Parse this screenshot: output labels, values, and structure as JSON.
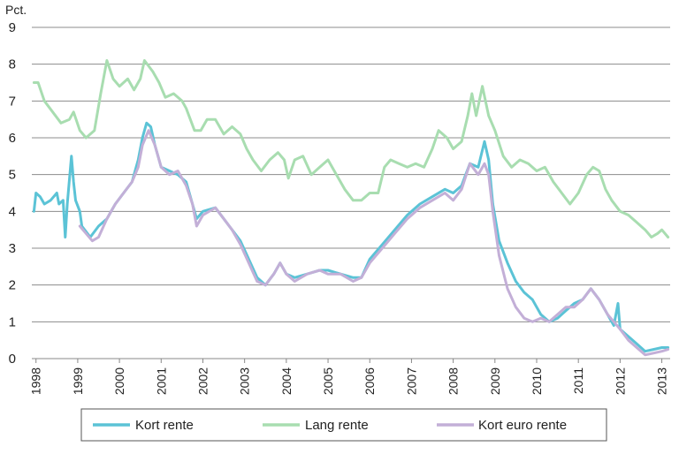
{
  "chart_data": {
    "type": "line",
    "ylabel_unit": "Pct.",
    "ylim": [
      0,
      9
    ],
    "yticks": [
      "0",
      "1",
      "2",
      "3",
      "4",
      "5",
      "6",
      "7",
      "8",
      "9"
    ],
    "xlim": [
      1997.9,
      2013.2
    ],
    "xticks": [
      "1998",
      "1999",
      "2000",
      "2001",
      "2002",
      "2003",
      "2004",
      "2005",
      "2006",
      "2007",
      "2008",
      "2009",
      "2010",
      "2011",
      "2012",
      "2013"
    ],
    "grid": true,
    "legend_position": "bottom",
    "series": [
      {
        "name": "Kort rente",
        "color": "#5bc3d6",
        "points": [
          [
            1997.95,
            4.0
          ],
          [
            1998.0,
            4.5
          ],
          [
            1998.1,
            4.4
          ],
          [
            1998.2,
            4.2
          ],
          [
            1998.35,
            4.3
          ],
          [
            1998.5,
            4.5
          ],
          [
            1998.55,
            4.2
          ],
          [
            1998.65,
            4.3
          ],
          [
            1998.7,
            3.3
          ],
          [
            1998.75,
            4.2
          ],
          [
            1998.85,
            5.5
          ],
          [
            1998.9,
            4.8
          ],
          [
            1998.95,
            4.3
          ],
          [
            1999.05,
            4.0
          ],
          [
            1999.1,
            3.6
          ],
          [
            1999.3,
            3.3
          ],
          [
            1999.5,
            3.6
          ],
          [
            1999.7,
            3.8
          ],
          [
            1999.9,
            4.2
          ],
          [
            2000.1,
            4.5
          ],
          [
            2000.3,
            4.8
          ],
          [
            2000.45,
            5.4
          ],
          [
            2000.55,
            6.0
          ],
          [
            2000.65,
            6.4
          ],
          [
            2000.75,
            6.3
          ],
          [
            2000.85,
            5.8
          ],
          [
            2001.0,
            5.2
          ],
          [
            2001.2,
            5.1
          ],
          [
            2001.4,
            5.0
          ],
          [
            2001.6,
            4.8
          ],
          [
            2001.75,
            4.2
          ],
          [
            2001.85,
            3.8
          ],
          [
            2002.0,
            4.0
          ],
          [
            2002.3,
            4.1
          ],
          [
            2002.5,
            3.8
          ],
          [
            2002.7,
            3.5
          ],
          [
            2002.9,
            3.2
          ],
          [
            2003.1,
            2.7
          ],
          [
            2003.3,
            2.2
          ],
          [
            2003.5,
            2.0
          ],
          [
            2003.7,
            2.3
          ],
          [
            2003.85,
            2.6
          ],
          [
            2004.0,
            2.3
          ],
          [
            2004.2,
            2.2
          ],
          [
            2004.5,
            2.3
          ],
          [
            2004.8,
            2.4
          ],
          [
            2005.0,
            2.4
          ],
          [
            2005.3,
            2.3
          ],
          [
            2005.6,
            2.2
          ],
          [
            2005.8,
            2.2
          ],
          [
            2006.0,
            2.7
          ],
          [
            2006.3,
            3.1
          ],
          [
            2006.6,
            3.5
          ],
          [
            2006.9,
            3.9
          ],
          [
            2007.2,
            4.2
          ],
          [
            2007.5,
            4.4
          ],
          [
            2007.8,
            4.6
          ],
          [
            2008.0,
            4.5
          ],
          [
            2008.2,
            4.7
          ],
          [
            2008.4,
            5.3
          ],
          [
            2008.6,
            5.2
          ],
          [
            2008.75,
            5.9
          ],
          [
            2008.85,
            5.4
          ],
          [
            2008.95,
            4.2
          ],
          [
            2009.1,
            3.2
          ],
          [
            2009.3,
            2.6
          ],
          [
            2009.5,
            2.1
          ],
          [
            2009.7,
            1.8
          ],
          [
            2009.9,
            1.6
          ],
          [
            2010.1,
            1.2
          ],
          [
            2010.3,
            1.0
          ],
          [
            2010.5,
            1.1
          ],
          [
            2010.7,
            1.3
          ],
          [
            2010.9,
            1.5
          ],
          [
            2011.1,
            1.6
          ],
          [
            2011.3,
            1.9
          ],
          [
            2011.5,
            1.6
          ],
          [
            2011.7,
            1.2
          ],
          [
            2011.85,
            0.9
          ],
          [
            2011.95,
            1.5
          ],
          [
            2012.0,
            0.8
          ],
          [
            2012.2,
            0.6
          ],
          [
            2012.4,
            0.4
          ],
          [
            2012.6,
            0.2
          ],
          [
            2012.8,
            0.25
          ],
          [
            2013.0,
            0.3
          ],
          [
            2013.15,
            0.3
          ]
        ]
      },
      {
        "name": "Lang rente",
        "color": "#a8ddb0",
        "points": [
          [
            1997.95,
            7.5
          ],
          [
            1998.05,
            7.5
          ],
          [
            1998.2,
            7.0
          ],
          [
            1998.4,
            6.7
          ],
          [
            1998.6,
            6.4
          ],
          [
            1998.8,
            6.5
          ],
          [
            1998.9,
            6.7
          ],
          [
            1999.05,
            6.2
          ],
          [
            1999.2,
            6.0
          ],
          [
            1999.4,
            6.2
          ],
          [
            1999.55,
            7.2
          ],
          [
            1999.7,
            8.1
          ],
          [
            1999.85,
            7.6
          ],
          [
            2000.0,
            7.4
          ],
          [
            2000.2,
            7.6
          ],
          [
            2000.35,
            7.3
          ],
          [
            2000.5,
            7.6
          ],
          [
            2000.6,
            8.1
          ],
          [
            2000.8,
            7.8
          ],
          [
            2000.95,
            7.5
          ],
          [
            2001.1,
            7.1
          ],
          [
            2001.3,
            7.2
          ],
          [
            2001.5,
            7.0
          ],
          [
            2001.6,
            6.8
          ],
          [
            2001.8,
            6.2
          ],
          [
            2001.95,
            6.2
          ],
          [
            2002.1,
            6.5
          ],
          [
            2002.3,
            6.5
          ],
          [
            2002.5,
            6.1
          ],
          [
            2002.7,
            6.3
          ],
          [
            2002.9,
            6.1
          ],
          [
            2003.05,
            5.7
          ],
          [
            2003.2,
            5.4
          ],
          [
            2003.4,
            5.1
          ],
          [
            2003.6,
            5.4
          ],
          [
            2003.8,
            5.6
          ],
          [
            2003.95,
            5.4
          ],
          [
            2004.05,
            4.9
          ],
          [
            2004.2,
            5.4
          ],
          [
            2004.4,
            5.5
          ],
          [
            2004.6,
            5.0
          ],
          [
            2004.8,
            5.2
          ],
          [
            2005.0,
            5.4
          ],
          [
            2005.2,
            5.0
          ],
          [
            2005.4,
            4.6
          ],
          [
            2005.6,
            4.3
          ],
          [
            2005.8,
            4.3
          ],
          [
            2006.0,
            4.5
          ],
          [
            2006.2,
            4.5
          ],
          [
            2006.35,
            5.2
          ],
          [
            2006.5,
            5.4
          ],
          [
            2006.7,
            5.3
          ],
          [
            2006.9,
            5.2
          ],
          [
            2007.1,
            5.3
          ],
          [
            2007.3,
            5.2
          ],
          [
            2007.5,
            5.7
          ],
          [
            2007.65,
            6.2
          ],
          [
            2007.85,
            6.0
          ],
          [
            2008.0,
            5.7
          ],
          [
            2008.2,
            5.9
          ],
          [
            2008.35,
            6.6
          ],
          [
            2008.45,
            7.2
          ],
          [
            2008.55,
            6.6
          ],
          [
            2008.7,
            7.4
          ],
          [
            2008.85,
            6.6
          ],
          [
            2009.0,
            6.2
          ],
          [
            2009.2,
            5.5
          ],
          [
            2009.4,
            5.2
          ],
          [
            2009.6,
            5.4
          ],
          [
            2009.8,
            5.3
          ],
          [
            2010.0,
            5.1
          ],
          [
            2010.2,
            5.2
          ],
          [
            2010.4,
            4.8
          ],
          [
            2010.6,
            4.5
          ],
          [
            2010.8,
            4.2
          ],
          [
            2011.0,
            4.5
          ],
          [
            2011.2,
            5.0
          ],
          [
            2011.35,
            5.2
          ],
          [
            2011.5,
            5.1
          ],
          [
            2011.65,
            4.6
          ],
          [
            2011.8,
            4.3
          ],
          [
            2012.0,
            4.0
          ],
          [
            2012.2,
            3.9
          ],
          [
            2012.4,
            3.7
          ],
          [
            2012.6,
            3.5
          ],
          [
            2012.75,
            3.3
          ],
          [
            2012.9,
            3.4
          ],
          [
            2013.0,
            3.5
          ],
          [
            2013.15,
            3.3
          ]
        ]
      },
      {
        "name": "Kort euro rente",
        "color": "#c3afd7",
        "points": [
          [
            1999.05,
            3.6
          ],
          [
            1999.2,
            3.4
          ],
          [
            1999.35,
            3.2
          ],
          [
            1999.5,
            3.3
          ],
          [
            1999.7,
            3.8
          ],
          [
            1999.9,
            4.2
          ],
          [
            2000.1,
            4.5
          ],
          [
            2000.3,
            4.8
          ],
          [
            2000.45,
            5.2
          ],
          [
            2000.55,
            5.8
          ],
          [
            2000.7,
            6.2
          ],
          [
            2000.85,
            5.8
          ],
          [
            2001.0,
            5.2
          ],
          [
            2001.2,
            5.0
          ],
          [
            2001.4,
            5.1
          ],
          [
            2001.6,
            4.7
          ],
          [
            2001.75,
            4.2
          ],
          [
            2001.85,
            3.6
          ],
          [
            2002.0,
            3.9
          ],
          [
            2002.3,
            4.1
          ],
          [
            2002.5,
            3.8
          ],
          [
            2002.7,
            3.5
          ],
          [
            2002.9,
            3.1
          ],
          [
            2003.1,
            2.6
          ],
          [
            2003.3,
            2.1
          ],
          [
            2003.5,
            2.0
          ],
          [
            2003.7,
            2.3
          ],
          [
            2003.85,
            2.6
          ],
          [
            2004.0,
            2.3
          ],
          [
            2004.2,
            2.1
          ],
          [
            2004.5,
            2.3
          ],
          [
            2004.8,
            2.4
          ],
          [
            2005.0,
            2.3
          ],
          [
            2005.3,
            2.3
          ],
          [
            2005.6,
            2.1
          ],
          [
            2005.8,
            2.2
          ],
          [
            2006.0,
            2.6
          ],
          [
            2006.3,
            3.0
          ],
          [
            2006.6,
            3.4
          ],
          [
            2006.9,
            3.8
          ],
          [
            2007.2,
            4.1
          ],
          [
            2007.5,
            4.3
          ],
          [
            2007.8,
            4.5
          ],
          [
            2008.0,
            4.3
          ],
          [
            2008.2,
            4.6
          ],
          [
            2008.4,
            5.3
          ],
          [
            2008.6,
            5.0
          ],
          [
            2008.75,
            5.3
          ],
          [
            2008.85,
            5.0
          ],
          [
            2008.95,
            4.0
          ],
          [
            2009.1,
            2.8
          ],
          [
            2009.3,
            1.9
          ],
          [
            2009.5,
            1.4
          ],
          [
            2009.7,
            1.1
          ],
          [
            2009.9,
            1.0
          ],
          [
            2010.1,
            1.1
          ],
          [
            2010.3,
            1.0
          ],
          [
            2010.5,
            1.2
          ],
          [
            2010.7,
            1.4
          ],
          [
            2010.9,
            1.4
          ],
          [
            2011.1,
            1.6
          ],
          [
            2011.3,
            1.9
          ],
          [
            2011.5,
            1.6
          ],
          [
            2011.7,
            1.2
          ],
          [
            2011.85,
            1.0
          ],
          [
            2012.0,
            0.8
          ],
          [
            2012.2,
            0.5
          ],
          [
            2012.4,
            0.3
          ],
          [
            2012.6,
            0.1
          ],
          [
            2012.8,
            0.15
          ],
          [
            2013.0,
            0.2
          ],
          [
            2013.15,
            0.25
          ]
        ]
      }
    ]
  }
}
